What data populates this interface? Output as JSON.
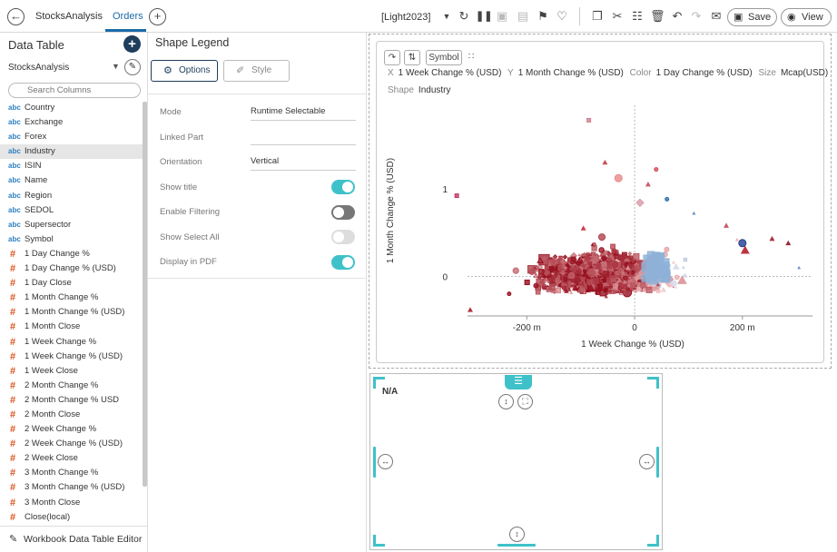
{
  "header": {
    "tabs": [
      {
        "label": "StocksAnalysis"
      },
      {
        "label": "Orders"
      }
    ],
    "theme": "[Light2023]",
    "save_label": "Save",
    "view_label": "View"
  },
  "sidebar": {
    "title": "Data Table",
    "data_source": "StocksAnalysis",
    "search_placeholder": "Search Columns",
    "editor_label": "Workbook Data Table Editor",
    "items": [
      {
        "type": "abc",
        "label": "Country"
      },
      {
        "type": "abc",
        "label": "Exchange"
      },
      {
        "type": "abc",
        "label": "Forex"
      },
      {
        "type": "abc",
        "label": "Industry"
      },
      {
        "type": "abc",
        "label": "ISIN"
      },
      {
        "type": "abc",
        "label": "Name"
      },
      {
        "type": "abc",
        "label": "Region"
      },
      {
        "type": "abc",
        "label": "SEDOL"
      },
      {
        "type": "abc",
        "label": "Supersector"
      },
      {
        "type": "abc",
        "label": "Symbol"
      },
      {
        "type": "#",
        "label": "1 Day Change %"
      },
      {
        "type": "#",
        "label": "1 Day Change % (USD)"
      },
      {
        "type": "#",
        "label": "1 Day Close"
      },
      {
        "type": "#",
        "label": "1 Month Change %"
      },
      {
        "type": "#",
        "label": "1 Month Change % (USD)"
      },
      {
        "type": "#",
        "label": "1 Month Close"
      },
      {
        "type": "#",
        "label": "1 Week Change %"
      },
      {
        "type": "#",
        "label": "1 Week Change % (USD)"
      },
      {
        "type": "#",
        "label": "1 Week Close"
      },
      {
        "type": "#",
        "label": "2 Month Change %"
      },
      {
        "type": "#",
        "label": "2 Month Change % USD"
      },
      {
        "type": "#",
        "label": "2 Month Close"
      },
      {
        "type": "#",
        "label": "2 Week Change %"
      },
      {
        "type": "#",
        "label": "2 Week Change % (USD)"
      },
      {
        "type": "#",
        "label": "2 Week Close"
      },
      {
        "type": "#",
        "label": "3 Month Change %"
      },
      {
        "type": "#",
        "label": "3 Month Change % (USD)"
      },
      {
        "type": "#",
        "label": "3 Month Close"
      },
      {
        "type": "#",
        "label": "Close(local)"
      }
    ],
    "selected_item": "Industry"
  },
  "legend_panel": {
    "title": "Shape Legend",
    "options_label": "Options",
    "style_label": "Style",
    "mode_label": "Mode",
    "mode_value": "Runtime Selectable",
    "linked_part_label": "Linked Part",
    "linked_part_value": "",
    "orientation_label": "Orientation",
    "orientation_value": "Vertical",
    "show_title_label": "Show title",
    "show_title_on": true,
    "enable_filtering_label": "Enable Filtering",
    "enable_filtering_on": false,
    "show_select_all_label": "Show Select All",
    "show_select_all_on": false,
    "display_pdf_label": "Display in PDF",
    "display_pdf_on": true
  },
  "scatter": {
    "symbol_label": "Symbol",
    "x_key": "X",
    "x_value": "1 Week Change % (USD)",
    "y_key": "Y",
    "y_value": "1 Month Change % (USD)",
    "color_key": "Color",
    "color_value": "1 Day Change % (USD)",
    "size_key": "Size",
    "size_value": "Mcap(USD)",
    "shape_key": "Shape",
    "shape_value": "Industry"
  },
  "chart_data": {
    "type": "scatter",
    "xlabel": "1 Week Change % (USD)",
    "ylabel": "1 Month Change % (USD)",
    "x_ticks": [
      {
        "v": -200,
        "label": "-200 m"
      },
      {
        "v": 0,
        "label": "0"
      },
      {
        "v": 200,
        "label": "200 m"
      }
    ],
    "y_ticks": [
      {
        "v": 0,
        "label": "0"
      },
      {
        "v": 1,
        "label": "1"
      }
    ],
    "xlim": [
      -310,
      330
    ],
    "ylim": [
      -0.45,
      1.95
    ],
    "colors": {
      "negative": "#b2182b",
      "positive": "#2166ac",
      "neutral": "#f4c6c6"
    },
    "outliers": [
      {
        "x": -330,
        "y": 0.92,
        "c": "#c03a6a",
        "s": 2,
        "shape": "square"
      },
      {
        "x": -305,
        "y": -0.38,
        "c": "#a01020",
        "s": 3,
        "shape": "triangle"
      },
      {
        "x": -85,
        "y": 1.78,
        "c": "#d08090",
        "s": 2,
        "shape": "square"
      },
      {
        "x": -55,
        "y": 1.3,
        "c": "#c03040",
        "s": 3,
        "shape": "triangle"
      },
      {
        "x": -30,
        "y": 1.12,
        "c": "#e88a8a",
        "s": 4,
        "shape": "circle"
      },
      {
        "x": 10,
        "y": 0.84,
        "c": "#d89aa8",
        "s": 4,
        "shape": "diamond"
      },
      {
        "x": 25,
        "y": 1.05,
        "c": "#c04050",
        "s": 3,
        "shape": "triangle"
      },
      {
        "x": 40,
        "y": 1.22,
        "c": "#d24d5a",
        "s": 2,
        "shape": "circle"
      },
      {
        "x": 60,
        "y": 0.88,
        "c": "#3070b0",
        "s": 2,
        "shape": "circle"
      },
      {
        "x": 110,
        "y": 0.72,
        "c": "#4a78c0",
        "s": 2,
        "shape": "triangle"
      },
      {
        "x": 170,
        "y": 0.58,
        "c": "#c04050",
        "s": 3,
        "shape": "triangle"
      },
      {
        "x": 200,
        "y": 0.38,
        "c": "#1f3d8c",
        "s": 4,
        "shape": "circle"
      },
      {
        "x": 205,
        "y": 0.3,
        "c": "#b01020",
        "s": 5,
        "shape": "triangle"
      },
      {
        "x": 255,
        "y": 0.43,
        "c": "#9c1020",
        "s": 3,
        "shape": "triangle"
      },
      {
        "x": 285,
        "y": 0.38,
        "c": "#7a0c18",
        "s": 3,
        "shape": "triangle"
      },
      {
        "x": 305,
        "y": 0.1,
        "c": "#5a7fc0",
        "s": 2,
        "shape": "triangle"
      },
      {
        "x": 190,
        "y": 0.42,
        "c": "#f0a0a0",
        "s": 2,
        "shape": "triangle"
      },
      {
        "x": -95,
        "y": 0.55,
        "c": "#c81a2e",
        "s": 3,
        "shape": "triangle"
      }
    ]
  }
}
